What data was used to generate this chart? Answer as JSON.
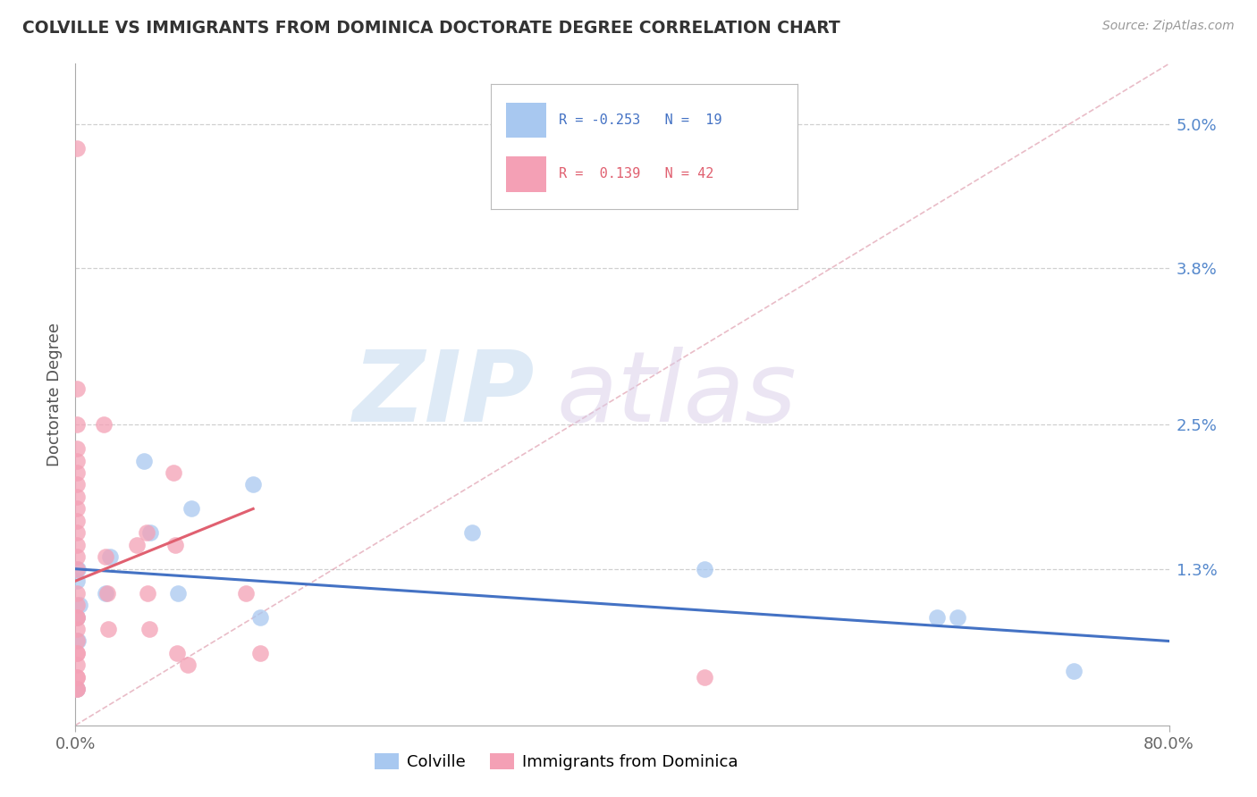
{
  "title": "COLVILLE VS IMMIGRANTS FROM DOMINICA DOCTORATE DEGREE CORRELATION CHART",
  "source": "Source: ZipAtlas.com",
  "ylabel": "Doctorate Degree",
  "xlim": [
    0.0,
    0.8
  ],
  "ylim": [
    0.0,
    0.055
  ],
  "yticks": [
    0.013,
    0.025,
    0.038,
    0.05
  ],
  "ytick_labels": [
    "1.3%",
    "2.5%",
    "3.8%",
    "5.0%"
  ],
  "xticks": [
    0.0,
    0.8
  ],
  "xtick_labels": [
    "0.0%",
    "80.0%"
  ],
  "colville_color": "#a8c8f0",
  "dominica_color": "#f4a0b5",
  "colville_line_color": "#4472c4",
  "dominica_line_color": "#e06070",
  "diag_line_color": "#e0a0b0",
  "grid_color": "#d0d0d0",
  "legend_r_colville": "R = -0.253",
  "legend_n_colville": "N = 19",
  "legend_r_dominica": "R =  0.139",
  "legend_n_dominica": "N = 42",
  "colville_x": [
    0.002,
    0.001,
    0.003,
    0.001,
    0.002,
    0.001,
    0.025,
    0.022,
    0.05,
    0.055,
    0.075,
    0.085,
    0.13,
    0.135,
    0.29,
    0.46,
    0.63,
    0.645,
    0.73
  ],
  "colville_y": [
    0.013,
    0.012,
    0.01,
    0.009,
    0.007,
    0.003,
    0.014,
    0.011,
    0.022,
    0.016,
    0.011,
    0.018,
    0.02,
    0.009,
    0.016,
    0.013,
    0.009,
    0.009,
    0.0045
  ],
  "dominica_x": [
    0.001,
    0.001,
    0.001,
    0.001,
    0.001,
    0.001,
    0.001,
    0.001,
    0.001,
    0.001,
    0.001,
    0.001,
    0.001,
    0.001,
    0.001,
    0.001,
    0.001,
    0.001,
    0.001,
    0.001,
    0.001,
    0.001,
    0.001,
    0.001,
    0.001,
    0.001,
    0.001,
    0.021,
    0.022,
    0.023,
    0.024,
    0.045,
    0.052,
    0.053,
    0.054,
    0.072,
    0.073,
    0.074,
    0.082,
    0.125,
    0.135,
    0.46
  ],
  "dominica_y": [
    0.048,
    0.028,
    0.025,
    0.023,
    0.022,
    0.021,
    0.02,
    0.019,
    0.018,
    0.017,
    0.016,
    0.015,
    0.014,
    0.013,
    0.011,
    0.01,
    0.009,
    0.009,
    0.008,
    0.007,
    0.006,
    0.006,
    0.005,
    0.004,
    0.004,
    0.003,
    0.003,
    0.025,
    0.014,
    0.011,
    0.008,
    0.015,
    0.016,
    0.011,
    0.008,
    0.021,
    0.015,
    0.006,
    0.005,
    0.011,
    0.006,
    0.004
  ],
  "colville_trendline_x": [
    0.0,
    0.8
  ],
  "colville_trendline_y": [
    0.013,
    0.007
  ],
  "dominica_trendline_x": [
    0.0,
    0.13
  ],
  "dominica_trendline_y": [
    0.012,
    0.018
  ]
}
